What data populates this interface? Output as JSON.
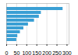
{
  "chart_data": {
    "type": "bar",
    "orientation": "horizontal",
    "categories": [
      null,
      null,
      null,
      null,
      null,
      null,
      null,
      null,
      null
    ],
    "values": [
      280,
      172,
      162,
      138,
      108,
      85,
      68,
      55,
      50
    ],
    "color": "#3a9fd4",
    "xlim": [
      0,
      310
    ],
    "xticks": [
      0,
      50,
      100,
      150,
      200,
      250,
      300
    ],
    "grid": true,
    "tick_labels": "x"
  }
}
